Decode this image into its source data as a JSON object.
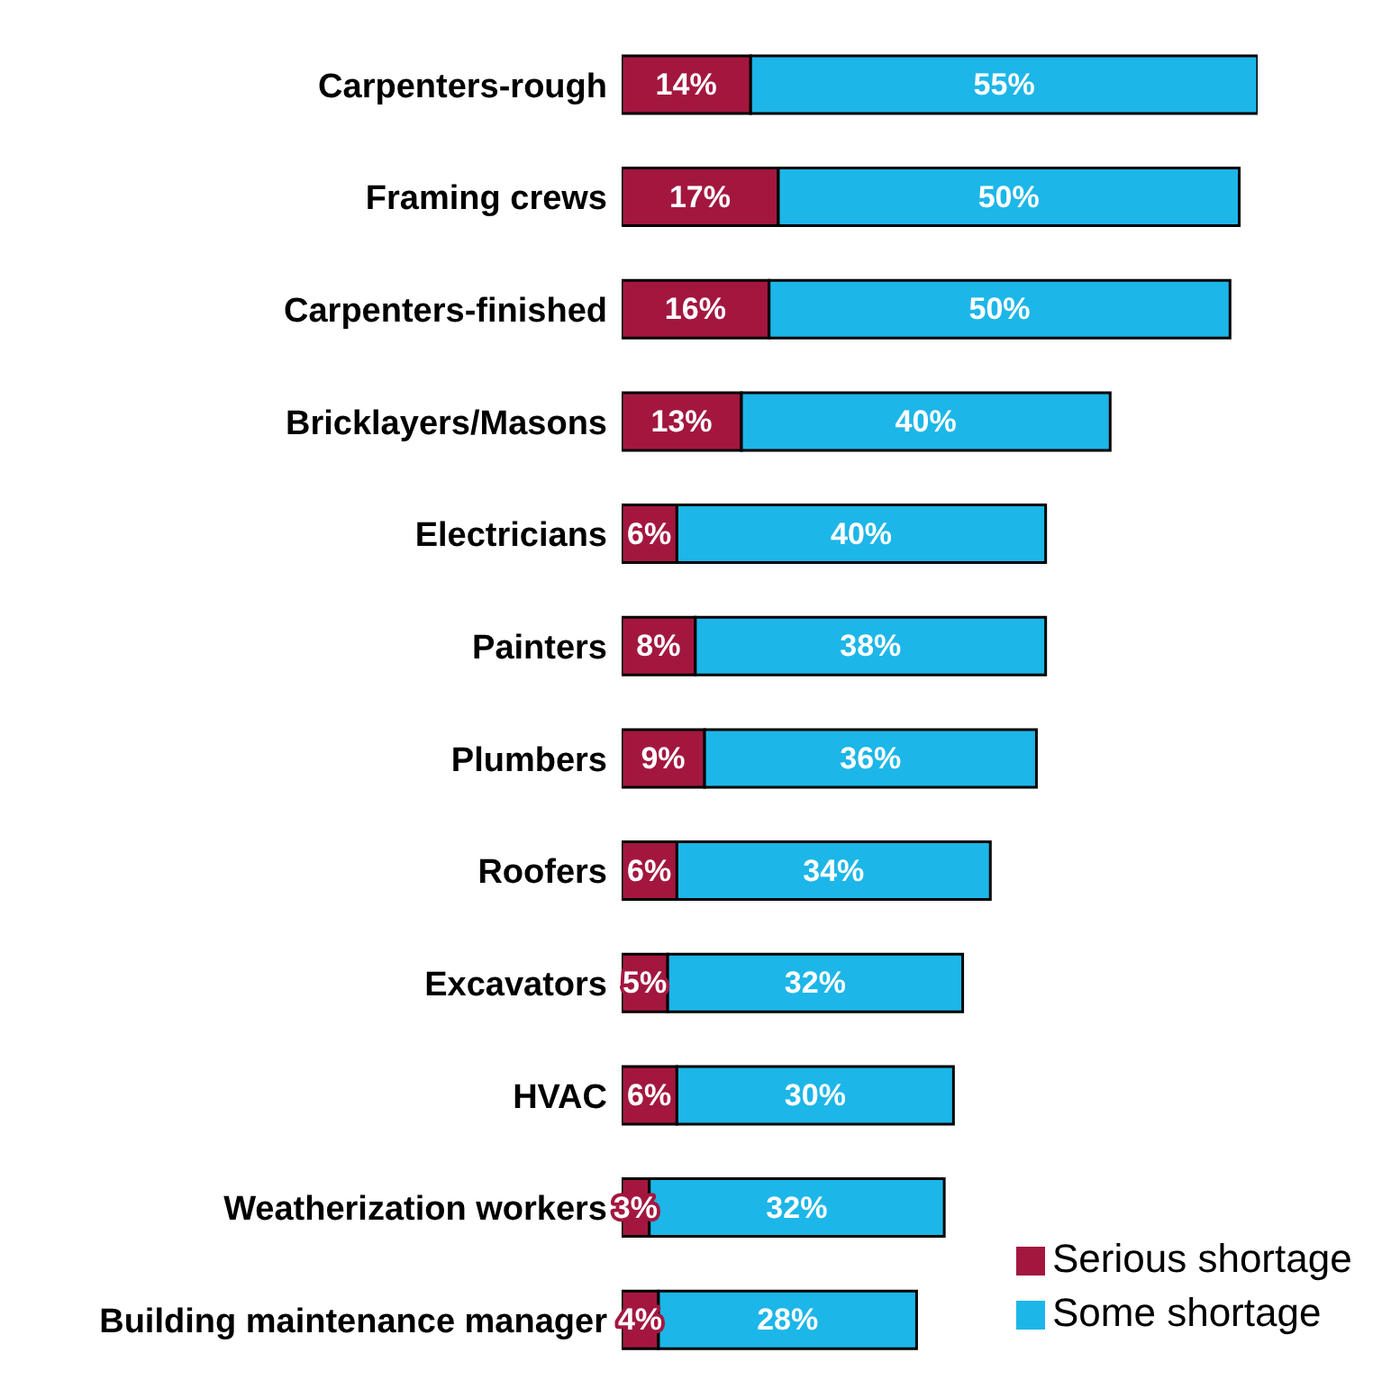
{
  "chart_data": {
    "type": "bar",
    "orientation": "horizontal",
    "stacked": true,
    "categories": [
      "Carpenters-rough",
      "Framing crews",
      "Carpenters-finished",
      "Bricklayers/Masons",
      "Electricians",
      "Painters",
      "Plumbers",
      "Roofers",
      "Excavators",
      "HVAC",
      "Weatherization workers",
      "Building maintenance manager"
    ],
    "series": [
      {
        "name": "Serious shortage",
        "color": "#a3173f",
        "values": [
          14,
          17,
          16,
          13,
          6,
          8,
          9,
          6,
          5,
          6,
          3,
          4
        ],
        "value_labels": [
          "14%",
          "17%",
          "16%",
          "13%",
          "6%",
          "8%",
          "9%",
          "6%",
          "5%",
          "6%",
          "3%",
          "4%"
        ]
      },
      {
        "name": "Some shortage",
        "color": "#1db6e8",
        "values": [
          55,
          50,
          50,
          40,
          40,
          38,
          36,
          34,
          32,
          30,
          32,
          28
        ],
        "value_labels": [
          "55%",
          "50%",
          "50%",
          "40%",
          "40%",
          "38%",
          "36%",
          "34%",
          "32%",
          "30%",
          "32%",
          "28%"
        ]
      }
    ],
    "legend": "bottom right",
    "grid": false
  }
}
